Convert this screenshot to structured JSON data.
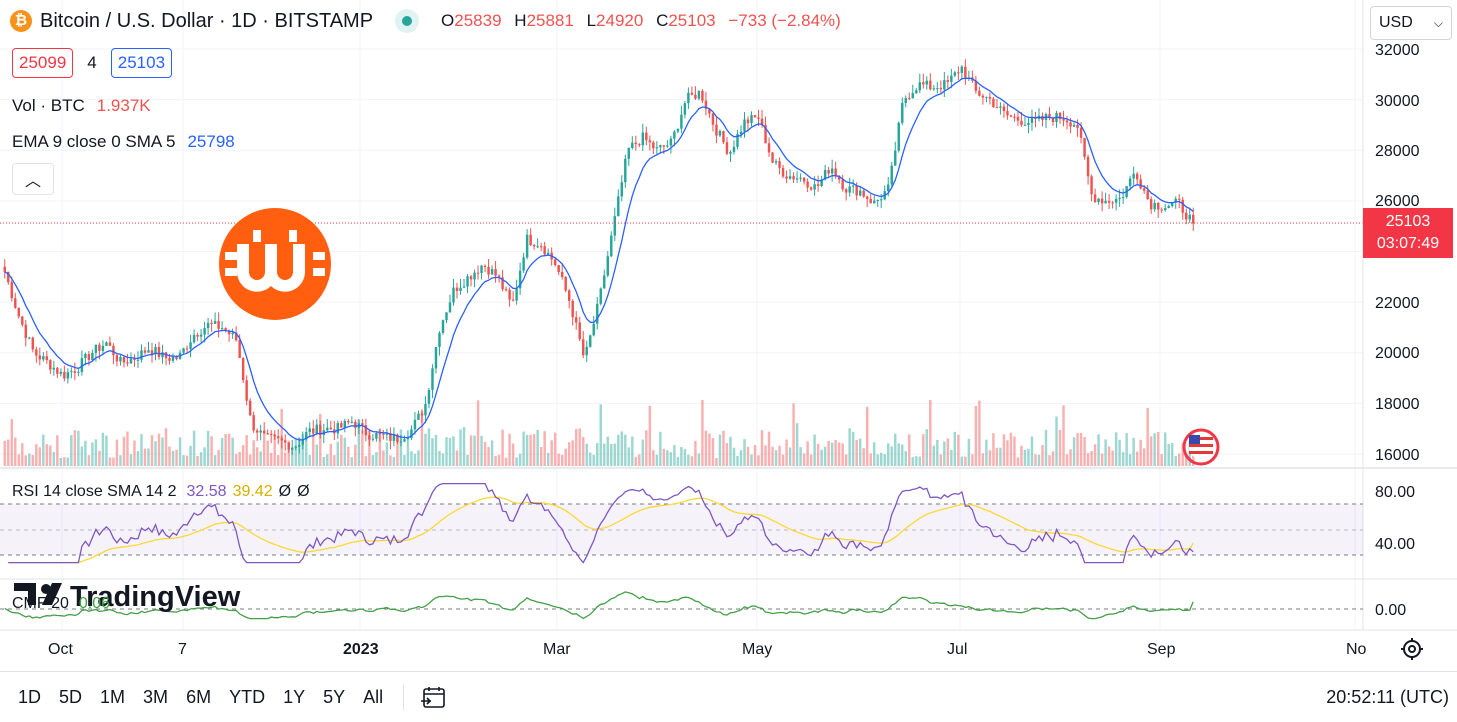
{
  "header": {
    "symbol_title": "Bitcoin / U.S. Dollar · 1D · BITSTAMP",
    "o_label": "O",
    "o_value": "25839",
    "h_label": "H",
    "h_value": "25881",
    "l_label": "L",
    "l_value": "24920",
    "c_label": "C",
    "c_value": "25103",
    "change": "−733 (−2.84%)"
  },
  "quote": {
    "bid": "25099",
    "spread": "4",
    "ask": "25103"
  },
  "indicators": {
    "volume": {
      "label": "Vol · BTC",
      "value": "1.937K"
    },
    "ema": {
      "label": "EMA 9 close 0 SMA 5",
      "value": "25798"
    },
    "rsi": {
      "label": "RSI 14 close SMA 14 2",
      "value1": "32.58",
      "value2": "39.42",
      "value3": "Ø",
      "value4": "Ø"
    },
    "cmf": {
      "label": "CMF 20",
      "value": "0.06"
    }
  },
  "currency": {
    "selected": "USD"
  },
  "last_price": {
    "price": "25103",
    "countdown": "03:07:49"
  },
  "price_axis": [
    "32000",
    "30000",
    "28000",
    "26000",
    "22000",
    "20000",
    "18000",
    "16000"
  ],
  "rsi_axis": [
    "80.00",
    "40.00"
  ],
  "cmf_axis": [
    "0.00"
  ],
  "time_axis": [
    "Oct",
    "7",
    "2023",
    "Mar",
    "May",
    "Jul",
    "Sep",
    "No"
  ],
  "ranges": [
    "1D",
    "5D",
    "1M",
    "3M",
    "6M",
    "YTD",
    "1Y",
    "5Y",
    "All"
  ],
  "clock": "20:52:11 (UTC)",
  "watermark": "TradingView",
  "colors": {
    "up": "#26a69a",
    "down": "#ef5350",
    "ema": "#2962ff",
    "rsi": "#7e57c2",
    "rsi_sma": "#fdd835",
    "cmf": "#43a047",
    "accent": "#f23645"
  },
  "chart_data": {
    "type": "candlestick",
    "ylim": [
      15500,
      32300
    ],
    "x": [
      "Oct",
      "7",
      "2023",
      "Mar",
      "May",
      "Jul",
      "Sep"
    ],
    "close_path": [
      23200,
      21400,
      20000,
      19600,
      19100,
      19400,
      20000,
      20400,
      19600,
      19800,
      20200,
      19800,
      19800,
      20700,
      21100,
      21000,
      20500,
      17200,
      16600,
      16500,
      16300,
      16900,
      17000,
      17000,
      17300,
      16800,
      16700,
      16600,
      16900,
      17900,
      21000,
      22500,
      23000,
      23500,
      23000,
      21800,
      24500,
      24300,
      23500,
      22000,
      19700,
      22000,
      25000,
      28000,
      28500,
      28000,
      28300,
      30000,
      30300,
      28900,
      27900,
      29100,
      29300,
      27500,
      27000,
      26900,
      26500,
      27400,
      26500,
      26400,
      25900,
      26500,
      30000,
      30600,
      30500,
      30600,
      31300,
      30300,
      30000,
      29400,
      29200,
      29100,
      29300,
      29300,
      29000,
      26200,
      26000,
      26100,
      27200,
      25900,
      25800,
      25900,
      25103
    ],
    "rsi_sma_value": 39.42,
    "rsi_value": 32.58,
    "cmf_value": 0.06
  }
}
